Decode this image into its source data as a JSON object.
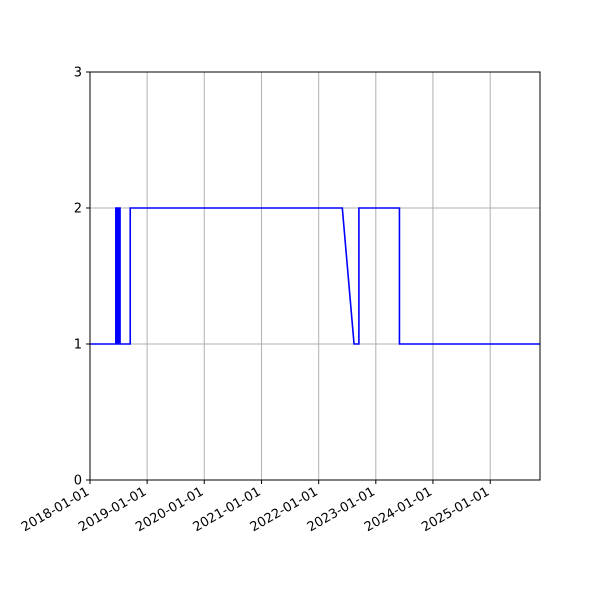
{
  "chart_data": {
    "type": "line",
    "title": "",
    "xlabel": "",
    "ylabel": "",
    "x_scale": "date",
    "xlim": [
      "2018-01-01",
      "2025-11-15"
    ],
    "ylim": [
      0,
      3
    ],
    "grid": true,
    "legend": "none",
    "x_ticks": [
      "2018-01-01",
      "2019-01-01",
      "2020-01-01",
      "2021-01-01",
      "2022-01-01",
      "2023-01-01",
      "2024-01-01",
      "2025-01-01"
    ],
    "y_ticks": [
      0,
      1,
      2,
      3
    ],
    "series": [
      {
        "color": "#0000ff",
        "points": [
          [
            "2018-01-01",
            1
          ],
          [
            "2018-06-15",
            1
          ],
          [
            "2018-06-15",
            2
          ],
          [
            "2018-06-25",
            2
          ],
          [
            "2018-06-25",
            1
          ],
          [
            "2018-07-02",
            1
          ],
          [
            "2018-07-02",
            2
          ],
          [
            "2018-07-12",
            2
          ],
          [
            "2018-07-12",
            1
          ],
          [
            "2018-09-15",
            1
          ],
          [
            "2018-09-15",
            2
          ],
          [
            "2022-06-01",
            2
          ],
          [
            "2022-08-15",
            1
          ],
          [
            "2022-09-15",
            1
          ],
          [
            "2022-09-15",
            2
          ],
          [
            "2023-06-01",
            2
          ],
          [
            "2023-06-01",
            1
          ],
          [
            "2025-11-15",
            1
          ]
        ]
      }
    ]
  }
}
